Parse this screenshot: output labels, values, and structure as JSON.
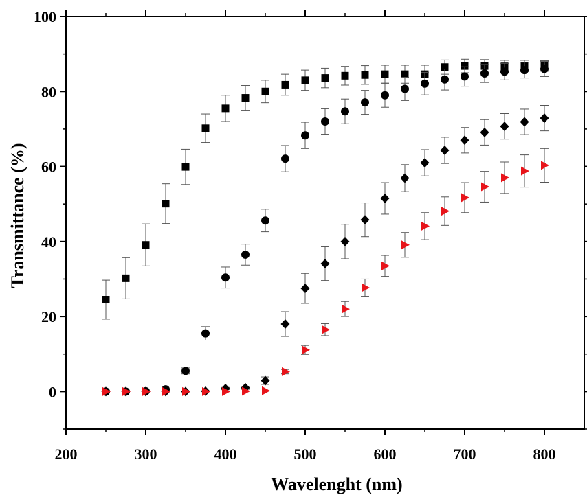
{
  "chart_data": {
    "type": "scatter",
    "title": "",
    "xlabel": "Wavelenght (nm)",
    "ylabel": "Transmittance (%)",
    "xlim": [
      200,
      850
    ],
    "ylim": [
      -10,
      100
    ],
    "xticks": [
      200,
      300,
      400,
      500,
      600,
      700,
      800
    ],
    "yticks": [
      0,
      20,
      40,
      60,
      80,
      100
    ],
    "grid": false,
    "legend": "none",
    "series": [
      {
        "marker": "square",
        "color": "#000000",
        "x": [
          250,
          275,
          300,
          325,
          350,
          375,
          400,
          425,
          450,
          475,
          500,
          525,
          550,
          575,
          600,
          625,
          650,
          675,
          700,
          725,
          750,
          775,
          800
        ],
        "values": [
          24.5,
          30.2,
          39.1,
          50.1,
          59.9,
          70.2,
          75.5,
          78.3,
          80.0,
          81.8,
          83.0,
          83.6,
          84.2,
          84.4,
          84.6,
          84.6,
          84.6,
          86.5,
          86.8,
          86.8,
          86.7,
          86.8,
          86.8
        ],
        "errors": [
          5.2,
          5.5,
          5.6,
          5.3,
          4.7,
          3.8,
          3.5,
          3.3,
          3.0,
          2.8,
          2.7,
          2.6,
          2.5,
          2.5,
          2.4,
          2.4,
          2.4,
          1.9,
          1.8,
          1.7,
          1.6,
          1.5,
          1.4
        ]
      },
      {
        "marker": "circle",
        "color": "#000000",
        "x": [
          250,
          275,
          300,
          325,
          350,
          375,
          400,
          425,
          450,
          475,
          500,
          525,
          550,
          575,
          600,
          625,
          650,
          675,
          700,
          725,
          750,
          775,
          800
        ],
        "values": [
          0.0,
          0.0,
          0.1,
          0.6,
          5.5,
          15.5,
          30.4,
          36.5,
          45.6,
          62.1,
          68.3,
          72.0,
          74.7,
          77.1,
          79.0,
          80.7,
          82.1,
          83.2,
          84.0,
          84.8,
          85.3,
          85.7,
          86.0
        ],
        "errors": [
          0.0,
          0.0,
          0.0,
          0.0,
          0.8,
          1.8,
          2.8,
          2.8,
          3.0,
          3.5,
          3.5,
          3.4,
          3.3,
          3.2,
          3.2,
          3.1,
          3.0,
          2.8,
          2.6,
          2.4,
          2.2,
          2.1,
          2.0
        ]
      },
      {
        "marker": "diamond",
        "color": "#000000",
        "x": [
          250,
          275,
          300,
          325,
          350,
          375,
          400,
          425,
          450,
          475,
          500,
          525,
          550,
          575,
          600,
          625,
          650,
          675,
          700,
          725,
          750,
          775,
          800
        ],
        "values": [
          0.0,
          0.0,
          0.0,
          0.0,
          0.0,
          0.1,
          0.8,
          1.0,
          2.9,
          18.0,
          27.5,
          34.1,
          40.0,
          45.8,
          51.5,
          56.9,
          61.0,
          64.3,
          67.0,
          69.1,
          70.7,
          71.9,
          72.9
        ],
        "errors": [
          0.0,
          0.0,
          0.0,
          0.0,
          0.0,
          0.0,
          0.3,
          0.4,
          1.0,
          3.3,
          4.0,
          4.5,
          4.6,
          4.5,
          4.2,
          3.6,
          3.5,
          3.5,
          3.4,
          3.4,
          3.4,
          3.4,
          3.4
        ]
      },
      {
        "marker": "triangle-right",
        "color": "#e8141a",
        "x": [
          250,
          275,
          300,
          325,
          350,
          375,
          400,
          425,
          450,
          475,
          500,
          525,
          550,
          575,
          600,
          625,
          650,
          675,
          700,
          725,
          750,
          775,
          800
        ],
        "values": [
          0.0,
          0.0,
          0.0,
          0.0,
          0.0,
          0.0,
          0.0,
          0.1,
          0.2,
          5.3,
          11.1,
          16.5,
          22.0,
          27.7,
          33.5,
          39.1,
          44.1,
          48.1,
          51.7,
          54.6,
          57.0,
          58.8,
          60.3
        ],
        "errors": [
          0.0,
          0.0,
          0.0,
          0.0,
          0.0,
          0.0,
          0.0,
          0.0,
          0.0,
          0.6,
          1.2,
          1.6,
          2.0,
          2.3,
          2.8,
          3.3,
          3.6,
          3.8,
          4.0,
          4.1,
          4.2,
          4.3,
          4.5
        ]
      }
    ]
  }
}
